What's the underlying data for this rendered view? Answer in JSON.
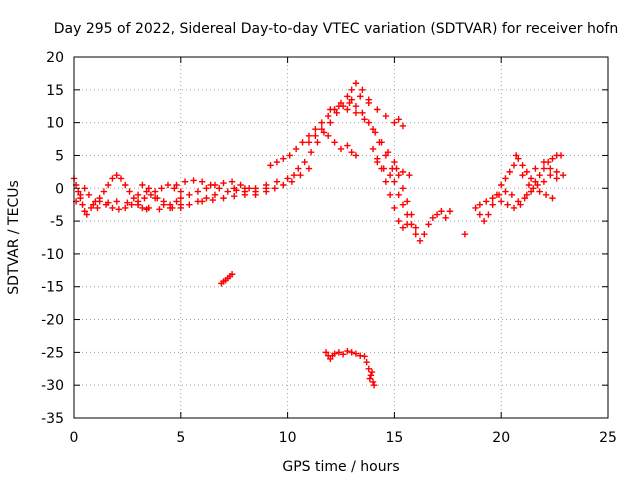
{
  "chart_data": {
    "type": "scatter",
    "title": "Day 295 of 2022, Sidereal Day-to-day VTEC variation (SDTVAR) for receiver hofn",
    "xlabel": "GPS time / hours",
    "ylabel": "SDTVAR / TECUs",
    "xlim": [
      0,
      25
    ],
    "ylim": [
      -35,
      20
    ],
    "xticks": [
      0,
      5,
      10,
      15,
      20,
      25
    ],
    "yticks": [
      -35,
      -30,
      -25,
      -20,
      -15,
      -10,
      -5,
      0,
      5,
      10,
      15,
      20
    ],
    "grid": true,
    "marker": "+",
    "color": "#ff0000",
    "series": [
      {
        "name": "SDTVAR",
        "points": [
          [
            0.0,
            1.5
          ],
          [
            0.1,
            0.5
          ],
          [
            0.2,
            -0.5
          ],
          [
            0.3,
            -1.5
          ],
          [
            0.4,
            -2.5
          ],
          [
            0.5,
            -3.5
          ],
          [
            0.6,
            -4.0
          ],
          [
            0.8,
            -3.0
          ],
          [
            1.0,
            -2.0
          ],
          [
            0.1,
            -2.0
          ],
          [
            0.3,
            -1.0
          ],
          [
            0.5,
            0.0
          ],
          [
            0.7,
            -1.0
          ],
          [
            0.9,
            -2.5
          ],
          [
            1.1,
            -3.0
          ],
          [
            1.2,
            -1.5
          ],
          [
            1.4,
            -0.5
          ],
          [
            1.6,
            0.5
          ],
          [
            1.8,
            1.5
          ],
          [
            2.0,
            2.0
          ],
          [
            2.2,
            1.5
          ],
          [
            2.4,
            0.5
          ],
          [
            2.6,
            -0.5
          ],
          [
            2.8,
            -1.5
          ],
          [
            3.0,
            -2.5
          ],
          [
            3.2,
            -3.0
          ],
          [
            3.4,
            -3.2
          ],
          [
            1.5,
            -2.5
          ],
          [
            1.8,
            -3.0
          ],
          [
            2.1,
            -3.2
          ],
          [
            2.4,
            -3.0
          ],
          [
            2.7,
            -2.5
          ],
          [
            3.0,
            -2.0
          ],
          [
            3.3,
            -1.5
          ],
          [
            3.6,
            -1.0
          ],
          [
            3.9,
            -1.5
          ],
          [
            4.2,
            -2.0
          ],
          [
            4.5,
            -2.5
          ],
          [
            4.8,
            -2.0
          ],
          [
            1.2,
            -2.0
          ],
          [
            1.6,
            -2.2
          ],
          [
            2.0,
            -2.0
          ],
          [
            2.5,
            -2.2
          ],
          [
            3.0,
            -2.5
          ],
          [
            3.5,
            -3.0
          ],
          [
            4.0,
            -3.2
          ],
          [
            4.5,
            -3.0
          ],
          [
            5.0,
            -2.5
          ],
          [
            3.2,
            0.5
          ],
          [
            3.5,
            0.0
          ],
          [
            3.8,
            -0.5
          ],
          [
            4.1,
            0.0
          ],
          [
            4.4,
            0.5
          ],
          [
            4.7,
            0.0
          ],
          [
            5.0,
            -0.5
          ],
          [
            3.0,
            -1.0
          ],
          [
            3.4,
            -0.5
          ],
          [
            3.8,
            -1.5
          ],
          [
            4.2,
            -2.5
          ],
          [
            4.6,
            -3.0
          ],
          [
            5.0,
            -3.0
          ],
          [
            5.4,
            -2.5
          ],
          [
            5.8,
            -2.0
          ],
          [
            6.2,
            -1.5
          ],
          [
            6.6,
            -1.0
          ],
          [
            4.8,
            0.5
          ],
          [
            5.2,
            1.0
          ],
          [
            5.6,
            1.2
          ],
          [
            6.0,
            1.0
          ],
          [
            6.4,
            0.5
          ],
          [
            6.8,
            0.0
          ],
          [
            7.2,
            -0.5
          ],
          [
            7.6,
            -0.3
          ],
          [
            8.0,
            0.0
          ],
          [
            5.0,
            -1.5
          ],
          [
            5.4,
            -1.0
          ],
          [
            5.8,
            -0.5
          ],
          [
            6.2,
            0.0
          ],
          [
            6.6,
            0.5
          ],
          [
            7.0,
            0.8
          ],
          [
            7.4,
            1.0
          ],
          [
            7.8,
            0.5
          ],
          [
            8.2,
            0.0
          ],
          [
            6.0,
            -2.0
          ],
          [
            6.5,
            -1.8
          ],
          [
            7.0,
            -1.5
          ],
          [
            7.5,
            -1.2
          ],
          [
            8.0,
            -1.0
          ],
          [
            8.5,
            -0.5
          ],
          [
            9.0,
            0.0
          ],
          [
            7.5,
            0.0
          ],
          [
            8.0,
            -0.5
          ],
          [
            8.5,
            0.0
          ],
          [
            9.0,
            0.5
          ],
          [
            9.5,
            1.0
          ],
          [
            10.0,
            1.5
          ],
          [
            10.3,
            2.0
          ],
          [
            8.5,
            -1.0
          ],
          [
            9.0,
            -0.5
          ],
          [
            9.4,
            0.0
          ],
          [
            9.8,
            0.5
          ],
          [
            10.2,
            1.0
          ],
          [
            10.6,
            2.0
          ],
          [
            11.0,
            3.0
          ],
          [
            9.2,
            3.5
          ],
          [
            9.5,
            4.0
          ],
          [
            9.8,
            4.5
          ],
          [
            10.1,
            5.0
          ],
          [
            10.4,
            6.0
          ],
          [
            10.7,
            7.0
          ],
          [
            11.0,
            8.0
          ],
          [
            11.3,
            9.0
          ],
          [
            11.6,
            10.0
          ],
          [
            11.9,
            11.0
          ],
          [
            12.2,
            12.0
          ],
          [
            12.5,
            13.0
          ],
          [
            12.8,
            14.0
          ],
          [
            13.0,
            15.0
          ],
          [
            13.2,
            16.0
          ],
          [
            13.5,
            15.0
          ],
          [
            13.8,
            13.5
          ],
          [
            10.5,
            3.0
          ],
          [
            10.8,
            4.0
          ],
          [
            11.1,
            5.5
          ],
          [
            11.4,
            7.0
          ],
          [
            11.7,
            8.5
          ],
          [
            12.0,
            10.0
          ],
          [
            12.3,
            11.5
          ],
          [
            12.6,
            12.5
          ],
          [
            12.9,
            13.0
          ],
          [
            13.2,
            12.5
          ],
          [
            13.5,
            11.5
          ],
          [
            13.8,
            10.0
          ],
          [
            14.1,
            8.5
          ],
          [
            14.4,
            7.0
          ],
          [
            14.7,
            5.5
          ],
          [
            15.0,
            4.0
          ],
          [
            15.2,
            2.0
          ],
          [
            15.4,
            0.0
          ],
          [
            15.6,
            -2.0
          ],
          [
            15.8,
            -4.0
          ],
          [
            16.0,
            -6.0
          ],
          [
            16.2,
            -8.0
          ],
          [
            16.4,
            -7.0
          ],
          [
            16.6,
            -5.5
          ],
          [
            16.8,
            -4.5
          ],
          [
            17.0,
            -4.0
          ],
          [
            17.2,
            -3.5
          ],
          [
            17.4,
            -4.5
          ],
          [
            17.6,
            -3.5
          ],
          [
            11.0,
            7.0
          ],
          [
            11.3,
            8.0
          ],
          [
            11.6,
            9.0
          ],
          [
            11.9,
            8.0
          ],
          [
            12.2,
            7.0
          ],
          [
            12.5,
            6.0
          ],
          [
            12.8,
            6.5
          ],
          [
            13.0,
            5.5
          ],
          [
            13.2,
            5.0
          ],
          [
            12.0,
            12.0
          ],
          [
            12.4,
            12.5
          ],
          [
            12.8,
            12.0
          ],
          [
            13.2,
            11.5
          ],
          [
            13.6,
            10.5
          ],
          [
            14.0,
            9.0
          ],
          [
            14.3,
            7.0
          ],
          [
            14.6,
            5.0
          ],
          [
            14.9,
            3.0
          ],
          [
            15.0,
            1.0
          ],
          [
            15.2,
            -1.0
          ],
          [
            15.4,
            -2.5
          ],
          [
            15.6,
            -4.0
          ],
          [
            15.8,
            -5.5
          ],
          [
            16.0,
            -7.0
          ],
          [
            13.0,
            13.5
          ],
          [
            13.4,
            14.0
          ],
          [
            13.8,
            13.0
          ],
          [
            14.2,
            12.0
          ],
          [
            14.6,
            11.0
          ],
          [
            15.0,
            10.0
          ],
          [
            15.2,
            10.5
          ],
          [
            15.4,
            9.5
          ],
          [
            14.0,
            6.0
          ],
          [
            14.2,
            4.5
          ],
          [
            14.4,
            3.0
          ],
          [
            14.6,
            1.0
          ],
          [
            14.8,
            -1.0
          ],
          [
            15.0,
            -3.0
          ],
          [
            15.2,
            -5.0
          ],
          [
            15.4,
            -6.0
          ],
          [
            15.6,
            -5.5
          ],
          [
            14.2,
            4.0
          ],
          [
            14.5,
            3.0
          ],
          [
            14.8,
            2.0
          ],
          [
            15.1,
            3.0
          ],
          [
            15.4,
            2.5
          ],
          [
            15.7,
            2.0
          ],
          [
            18.3,
            -7.0
          ],
          [
            18.8,
            -3.0
          ],
          [
            19.0,
            -4.0
          ],
          [
            19.2,
            -5.0
          ],
          [
            19.4,
            -4.0
          ],
          [
            19.6,
            -2.5
          ],
          [
            19.8,
            -1.0
          ],
          [
            20.0,
            0.5
          ],
          [
            20.2,
            1.5
          ],
          [
            20.4,
            2.5
          ],
          [
            20.6,
            3.5
          ],
          [
            20.8,
            4.5
          ],
          [
            21.0,
            3.5
          ],
          [
            21.2,
            2.5
          ],
          [
            21.4,
            1.5
          ],
          [
            21.6,
            1.0
          ],
          [
            21.8,
            2.0
          ],
          [
            22.0,
            3.0
          ],
          [
            22.2,
            4.0
          ],
          [
            22.4,
            4.5
          ],
          [
            22.6,
            5.0
          ],
          [
            22.8,
            5.0
          ],
          [
            19.0,
            -2.5
          ],
          [
            19.3,
            -2.0
          ],
          [
            19.6,
            -1.5
          ],
          [
            19.9,
            -1.0
          ],
          [
            20.2,
            -0.5
          ],
          [
            20.5,
            -1.0
          ],
          [
            20.8,
            -2.0
          ],
          [
            21.1,
            -1.5
          ],
          [
            21.4,
            -0.5
          ],
          [
            21.7,
            0.5
          ],
          [
            22.0,
            1.0
          ],
          [
            22.3,
            2.0
          ],
          [
            22.6,
            2.5
          ],
          [
            22.9,
            2.0
          ],
          [
            20.0,
            -2.0
          ],
          [
            20.3,
            -2.5
          ],
          [
            20.6,
            -3.0
          ],
          [
            20.9,
            -2.5
          ],
          [
            21.2,
            -1.0
          ],
          [
            21.5,
            0.0
          ],
          [
            21.8,
            -0.5
          ],
          [
            22.1,
            -1.0
          ],
          [
            22.4,
            -1.5
          ],
          [
            20.7,
            5.0
          ],
          [
            21.0,
            2.0
          ],
          [
            21.3,
            0.5
          ],
          [
            21.6,
            3.0
          ],
          [
            22.0,
            4.0
          ],
          [
            22.3,
            3.0
          ],
          [
            22.6,
            1.5
          ],
          [
            6.9,
            -14.5
          ],
          [
            7.0,
            -14.2
          ],
          [
            7.1,
            -14.0
          ],
          [
            7.2,
            -13.7
          ],
          [
            7.3,
            -13.4
          ],
          [
            7.4,
            -13.1
          ],
          [
            11.8,
            -25.0
          ],
          [
            11.9,
            -25.5
          ],
          [
            12.0,
            -26.0
          ],
          [
            12.1,
            -25.5
          ],
          [
            12.2,
            -25.2
          ],
          [
            12.4,
            -25.0
          ],
          [
            12.6,
            -25.3
          ],
          [
            12.8,
            -24.8
          ],
          [
            13.0,
            -25.0
          ],
          [
            13.2,
            -25.2
          ],
          [
            13.4,
            -25.5
          ],
          [
            13.6,
            -25.6
          ],
          [
            13.7,
            -26.5
          ],
          [
            13.8,
            -27.5
          ],
          [
            13.9,
            -28.5
          ],
          [
            14.0,
            -29.5
          ],
          [
            14.05,
            -30.0
          ],
          [
            13.85,
            -29.0
          ],
          [
            13.95,
            -28.0
          ]
        ]
      }
    ]
  }
}
